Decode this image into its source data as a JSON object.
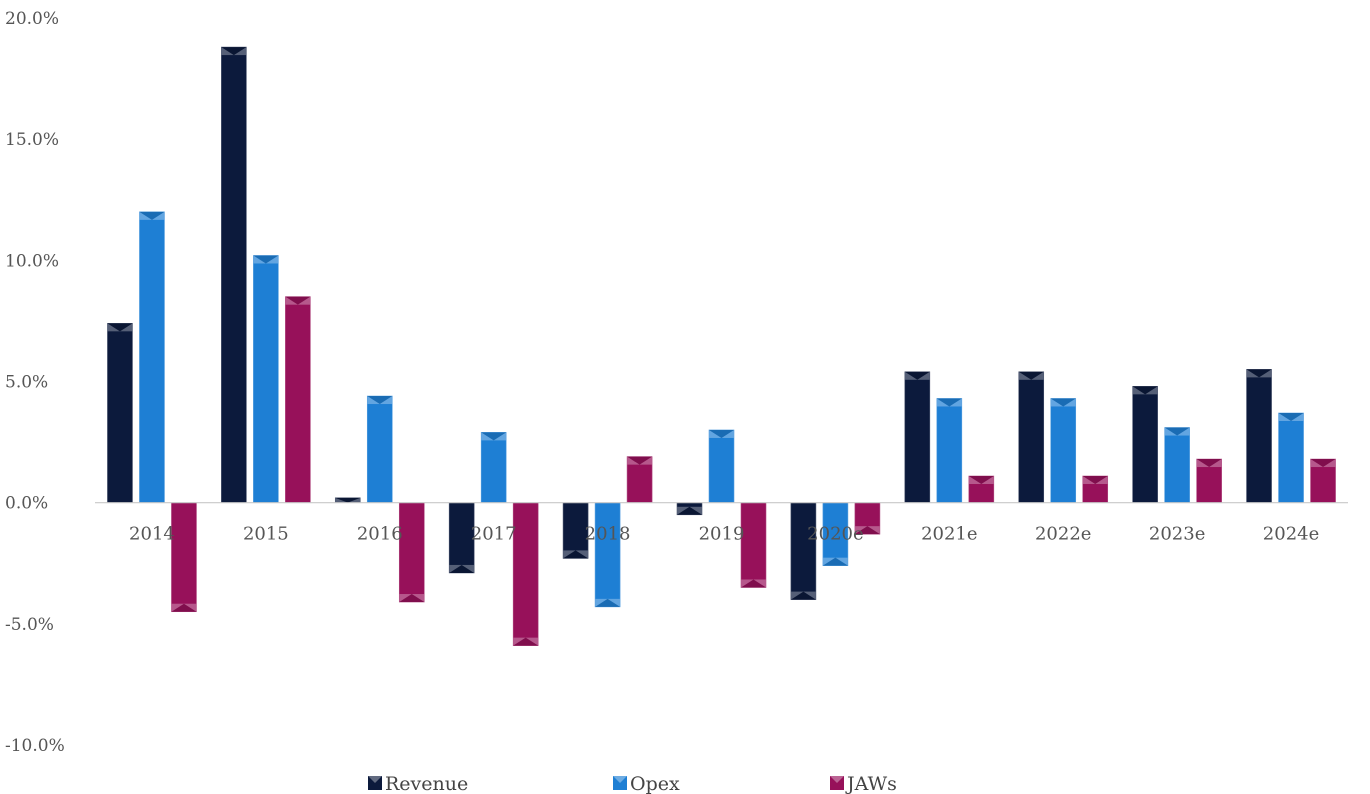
{
  "chart_data": {
    "type": "bar",
    "categories": [
      "2014",
      "2015",
      "2016",
      "2017",
      "2018",
      "2019",
      "2020e",
      "2021e",
      "2022e",
      "2023e",
      "2024e"
    ],
    "series": [
      {
        "name": "Revenue",
        "color": "#0c1a3c",
        "values": [
          7.4,
          18.8,
          0.2,
          -2.9,
          -2.3,
          -0.5,
          -4.0,
          5.4,
          5.4,
          4.8,
          5.5
        ]
      },
      {
        "name": "Opex",
        "color": "#1e7fd4",
        "values": [
          12.0,
          10.2,
          4.4,
          2.9,
          -4.3,
          3.0,
          -2.6,
          4.3,
          4.3,
          3.1,
          3.7
        ]
      },
      {
        "name": "JAWs",
        "color": "#97115a",
        "values": [
          -4.5,
          8.5,
          -4.1,
          -5.9,
          1.9,
          -3.5,
          -1.3,
          1.1,
          1.1,
          1.8,
          1.8
        ]
      }
    ],
    "y_ticks": [
      "-10.0%",
      "-5.0%",
      "0.0%",
      "5.0%",
      "10.0%",
      "15.0%",
      "20.0%"
    ],
    "ylim": [
      -10,
      20
    ],
    "title": "",
    "xlabel": "",
    "ylabel": "",
    "grid": false,
    "legend_position": "bottom"
  }
}
